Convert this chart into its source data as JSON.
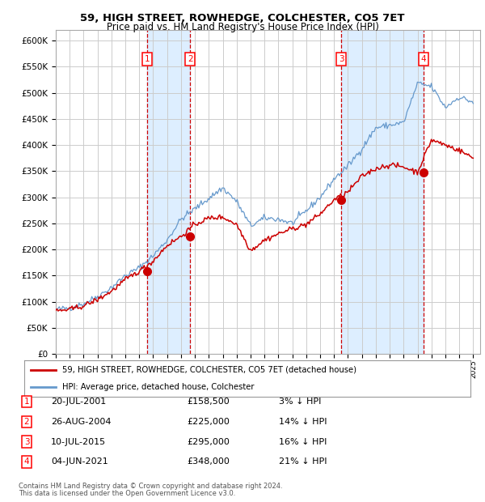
{
  "title": "59, HIGH STREET, ROWHEDGE, COLCHESTER, CO5 7ET",
  "subtitle": "Price paid vs. HM Land Registry's House Price Index (HPI)",
  "legend_line1": "59, HIGH STREET, ROWHEDGE, COLCHESTER, CO5 7ET (detached house)",
  "legend_line2": "HPI: Average price, detached house, Colchester",
  "footer1": "Contains HM Land Registry data © Crown copyright and database right 2024.",
  "footer2": "This data is licensed under the Open Government Licence v3.0.",
  "transactions": [
    {
      "num": 1,
      "date": "20-JUL-2001",
      "price": 158500,
      "hpi_diff": "3% ↓ HPI",
      "year_x": 2001.55
    },
    {
      "num": 2,
      "date": "26-AUG-2004",
      "price": 225000,
      "hpi_diff": "14% ↓ HPI",
      "year_x": 2004.65
    },
    {
      "num": 3,
      "date": "10-JUL-2015",
      "price": 295000,
      "hpi_diff": "16% ↓ HPI",
      "year_x": 2015.52
    },
    {
      "num": 4,
      "date": "04-JUN-2021",
      "price": 348000,
      "hpi_diff": "21% ↓ HPI",
      "year_x": 2021.42
    }
  ],
  "marker_prices": [
    158500,
    225000,
    295000,
    348000
  ],
  "ylim": [
    0,
    620000
  ],
  "xlim_start": 1995.0,
  "xlim_end": 2025.5,
  "hpi_color": "#6699cc",
  "price_color": "#cc0000",
  "dashed_color": "#cc0000",
  "shade_color": "#ddeeff",
  "grid_color": "#cccccc",
  "bg_color": "#ffffff",
  "hpi_years": [
    1995,
    1996,
    1997,
    1998,
    1999,
    2000,
    2001,
    2002,
    2003,
    2004,
    2005,
    2006,
    2007,
    2008,
    2009,
    2010,
    2011,
    2012,
    2013,
    2014,
    2015,
    2016,
    2017,
    2018,
    2019,
    2020,
    2021,
    2022,
    2023,
    2024,
    2025
  ],
  "hpi_values": [
    85000,
    88000,
    96000,
    110000,
    127000,
    150000,
    165000,
    188000,
    218000,
    258000,
    278000,
    298000,
    318000,
    292000,
    245000,
    260000,
    258000,
    250000,
    274000,
    300000,
    335000,
    360000,
    393000,
    433000,
    438000,
    443000,
    518000,
    512000,
    472000,
    492000,
    482000
  ],
  "price_years": [
    1995,
    1996,
    1997,
    1998,
    1999,
    2000,
    2001,
    2002,
    2003,
    2004,
    2005,
    2006,
    2007,
    2008,
    2009,
    2010,
    2011,
    2012,
    2013,
    2014,
    2015,
    2016,
    2017,
    2018,
    2019,
    2020,
    2021,
    2022,
    2023,
    2024,
    2025
  ],
  "price_values": [
    82000,
    85000,
    92000,
    104000,
    120000,
    142000,
    158500,
    178000,
    208000,
    225000,
    248000,
    260000,
    262000,
    248000,
    198000,
    218000,
    230000,
    240000,
    248000,
    268000,
    295000,
    310000,
    340000,
    355000,
    362000,
    358000,
    348000,
    410000,
    400000,
    390000,
    375000
  ]
}
